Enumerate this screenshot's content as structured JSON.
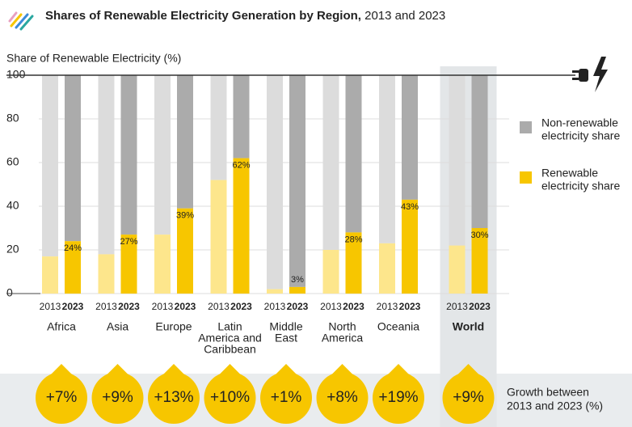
{
  "chart_data": {
    "type": "bar",
    "title": "Shares of Renewable Electricity Generation by Region,",
    "title_suffix": "2013 and 2023",
    "y_label": "Share of Renewable Electricity (%)",
    "categories": [
      [
        "Africa"
      ],
      [
        "Asia"
      ],
      [
        "Europe"
      ],
      [
        "Latin",
        "America and",
        "Caribbean"
      ],
      [
        "Middle",
        "East"
      ],
      [
        "North",
        "America"
      ],
      [
        "Oceania"
      ],
      [
        "World"
      ]
    ],
    "highlight_category": 7,
    "series": [
      {
        "name": "2013",
        "color": "#fde68c",
        "rest_color": "#dcdcdc",
        "values": [
          17,
          18,
          27,
          52,
          2,
          20,
          23,
          22
        ]
      },
      {
        "name": "2023",
        "color": "#f7c600",
        "rest_color": "#ababab",
        "values": [
          24,
          27,
          39,
          62,
          3,
          28,
          43,
          30
        ],
        "value_labels": [
          "24%",
          "27%",
          "39%",
          "62%",
          "3%",
          "28%",
          "43%",
          "30%"
        ]
      }
    ],
    "growth_labels": [
      "+7%",
      "+9%",
      "+13%",
      "+10%",
      "+1%",
      "+8%",
      "+19%",
      "+9%"
    ],
    "growth_caption": [
      "Growth between",
      "2013 and 2023 (%)"
    ],
    "legend": [
      {
        "lines": [
          "Non-renewable",
          "electricity share"
        ],
        "color": "#ababab"
      },
      {
        "lines": [
          "Renewable",
          "electricity share"
        ],
        "color": "#f7c600"
      }
    ],
    "ylim": [
      0,
      100
    ],
    "yticks": [
      0,
      20,
      40,
      60,
      80,
      100
    ],
    "grid": true
  }
}
